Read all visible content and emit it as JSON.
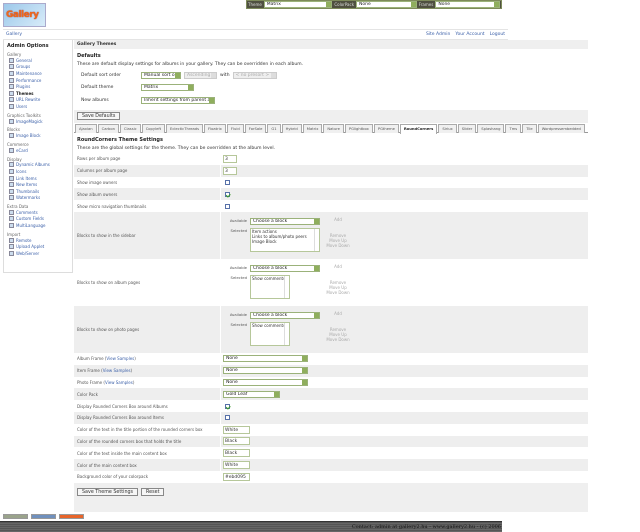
{
  "topbar": {
    "theme_label": "Theme",
    "theme_value": "Matrix",
    "colorpack_label": "ColorPack",
    "colorpack_value": "None",
    "frames_label": "Frames",
    "frames_value": "None"
  },
  "logo_text": "Gallery",
  "breadcrumb": "Gallery",
  "header_links": [
    "Site Admin",
    "Your Account",
    "Logout"
  ],
  "sidebar": {
    "title": "Admin Options",
    "groups": [
      {
        "label": "Gallery",
        "items": [
          "General",
          "Groups",
          "Maintenance",
          "Performance",
          "Plugins",
          "Themes",
          "URL Rewrite",
          "Users"
        ],
        "current": "Themes"
      },
      {
        "label": "Graphics Toolkits",
        "items": [
          "ImageMagick"
        ]
      },
      {
        "label": "Blocks",
        "items": [
          "Image Block"
        ]
      },
      {
        "label": "Commerce",
        "items": [
          "eCard"
        ]
      },
      {
        "label": "Display",
        "items": [
          "Dynamic Albums",
          "Icons",
          "Link Items",
          "New Items",
          "Thumbnails",
          "Watermarks"
        ]
      },
      {
        "label": "Extra Data",
        "items": [
          "Comments",
          "Custom Fields",
          "MultiLanguage"
        ]
      },
      {
        "label": "Import",
        "items": [
          "Remote",
          "Upload Applet",
          "Web/Server"
        ]
      }
    ]
  },
  "main": {
    "title": "Gallery Themes",
    "defaults": {
      "heading": "Defaults",
      "description": "These are default display settings for albums in your gallery. They can be overridden in each album.",
      "sort_label": "Default sort order",
      "sort_value": "Manual sort order",
      "sort_dir": "Ascending",
      "with_label": "with",
      "presort": "< no presort >",
      "theme_label": "Default theme",
      "theme_value": "Matrix",
      "new_label": "New albums",
      "new_value": "Inherit settings from parent album",
      "save": "Save Defaults"
    },
    "tabs": [
      "Ajaxian",
      "Carbon",
      "Classic",
      "Copyleft",
      "EclecticThreads",
      "Floatrix",
      "Fluid",
      "ForSale",
      "G1",
      "Hybrid",
      "Matrix",
      "Nature",
      "PGlightbox",
      "PGtheme",
      "RoundCorners",
      "Siriux",
      "Slider",
      "Splashang",
      "Tms",
      "Tile",
      "Wordpressembedded"
    ],
    "active_tab": "RoundCorners",
    "theme": {
      "heading": "RoundCorners Theme Settings",
      "description": "These are the global settings for the theme. They can be overridden at the album level.",
      "rows_label": "Rows per album page",
      "rows_value": "3",
      "cols_label": "Columns per album page",
      "cols_value": "3",
      "img_owners": "Show image owners",
      "img_owners_checked": false,
      "album_owners": "Show album owners",
      "album_owners_checked": true,
      "micro": "Show micro navigation thumbnails",
      "micro_checked": false,
      "blocks_ui": {
        "available": "Available",
        "selected": "Selected",
        "choose": "Choose a block",
        "add": "Add",
        "remove": "Remove",
        "up": "Move Up",
        "down": "Move Down"
      },
      "blocks": [
        {
          "label": "Blocks to show in the sidebar",
          "items": [
            "Item actions",
            "Links to album/photo peers",
            "Image Block"
          ]
        },
        {
          "label": "Blocks to show on album pages",
          "items": [
            "Show comments"
          ]
        },
        {
          "label": "Blocks to show on photo pages",
          "items": [
            "Show comments"
          ]
        }
      ],
      "view_samples": "View Samples",
      "album_frame": "Album Frame",
      "album_frame_value": "None",
      "item_frame": "Item Frame",
      "item_frame_value": "None",
      "photo_frame": "Photo Frame",
      "photo_frame_value": "None",
      "colorpack": "Color Pack",
      "colorpack_value": "Gold Leaf",
      "rc_albums": "Display Rounded Corners Box around Albums",
      "rc_albums_checked": true,
      "rc_items": "Display Rounded Corners Box around Items",
      "rc_items_checked": false,
      "c1": "Color of the text in the title portion of the rounded corners box",
      "c1v": "White",
      "c2": "Color of the rounded corners box that holds the title",
      "c2v": "Black",
      "c3": "Color of the text inside the main content box",
      "c3v": "Black",
      "c4": "Color of the main content box",
      "c4v": "White",
      "c5": "Background color of your colorpack",
      "c5v": "#ebd095",
      "save": "Save Theme Settings",
      "reset": "Reset"
    }
  },
  "footer": "Contact: admin at gallery2.hu - www.gallery2.hu - (c) 2006"
}
